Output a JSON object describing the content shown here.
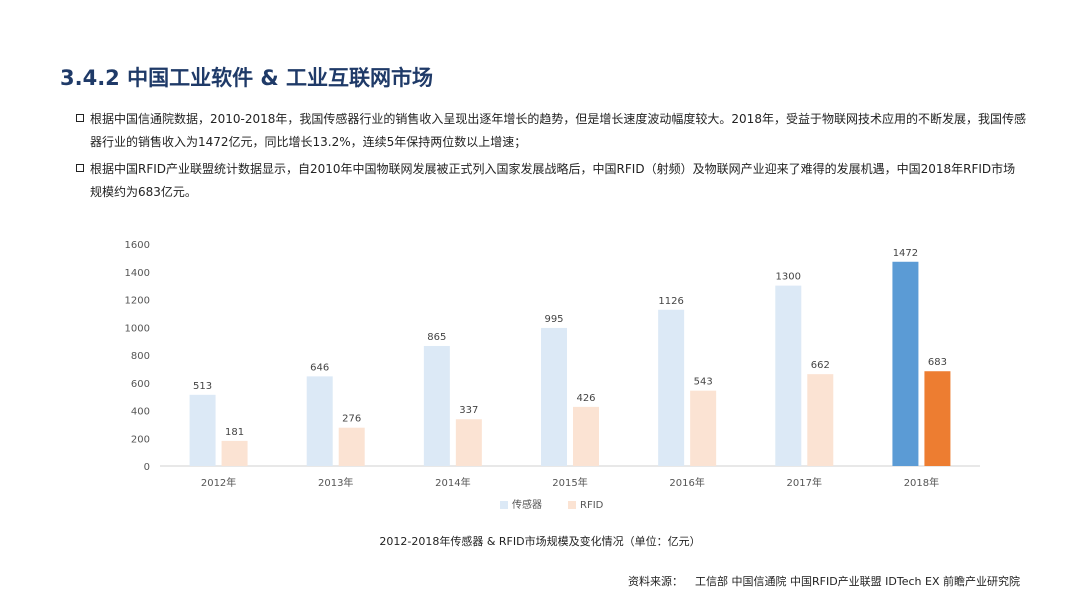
{
  "page": {
    "title": "3.4.2 中国工业软件 & 工业互联网市场",
    "bullets": [
      "根据中国信通院数据，2010-2018年，我国传感器行业的销售收入呈现出逐年增长的趋势，但是增长速度波动幅度较大。2018年，受益于物联网技术应用的不断发展，我国传感器行业的销售收入为1472亿元，同比增长13.2%，连续5年保持两位数以上增速；",
      "根据中国RFID产业联盟统计数据显示，自2010年中国物联网发展被正式列入国家发展战略后，中国RFID（射频）及物联网产业迎来了难得的发展机遇，中国2018年RFID市场规模约为683亿元。"
    ],
    "caption": "2012-2018年传感器 & RFID市场规模及变化情况（单位：亿元）",
    "source_label": "资料来源：",
    "source_text": "工信部 中国信通院 中国RFID产业联盟 IDTech EX 前瞻产业研究院"
  },
  "chart_data": {
    "type": "bar",
    "categories": [
      "2012年",
      "2013年",
      "2014年",
      "2015年",
      "2016年",
      "2017年",
      "2018年"
    ],
    "series": [
      {
        "name": "传感器",
        "values": [
          513,
          646,
          865,
          995,
          1126,
          1300,
          1472
        ],
        "color": "#dce9f6",
        "highlight_color": "#5b9bd5"
      },
      {
        "name": "RFID",
        "values": [
          181,
          276,
          337,
          426,
          543,
          662,
          683
        ],
        "color": "#fbe3d3",
        "highlight_color": "#ed7d31"
      }
    ],
    "highlight_category": "2018年",
    "yticks": [
      0,
      200,
      400,
      600,
      800,
      1000,
      1200,
      1400,
      1600
    ],
    "ylim": [
      0,
      1600
    ],
    "grid": false,
    "legend_position": "bottom",
    "show_data_labels": true
  }
}
